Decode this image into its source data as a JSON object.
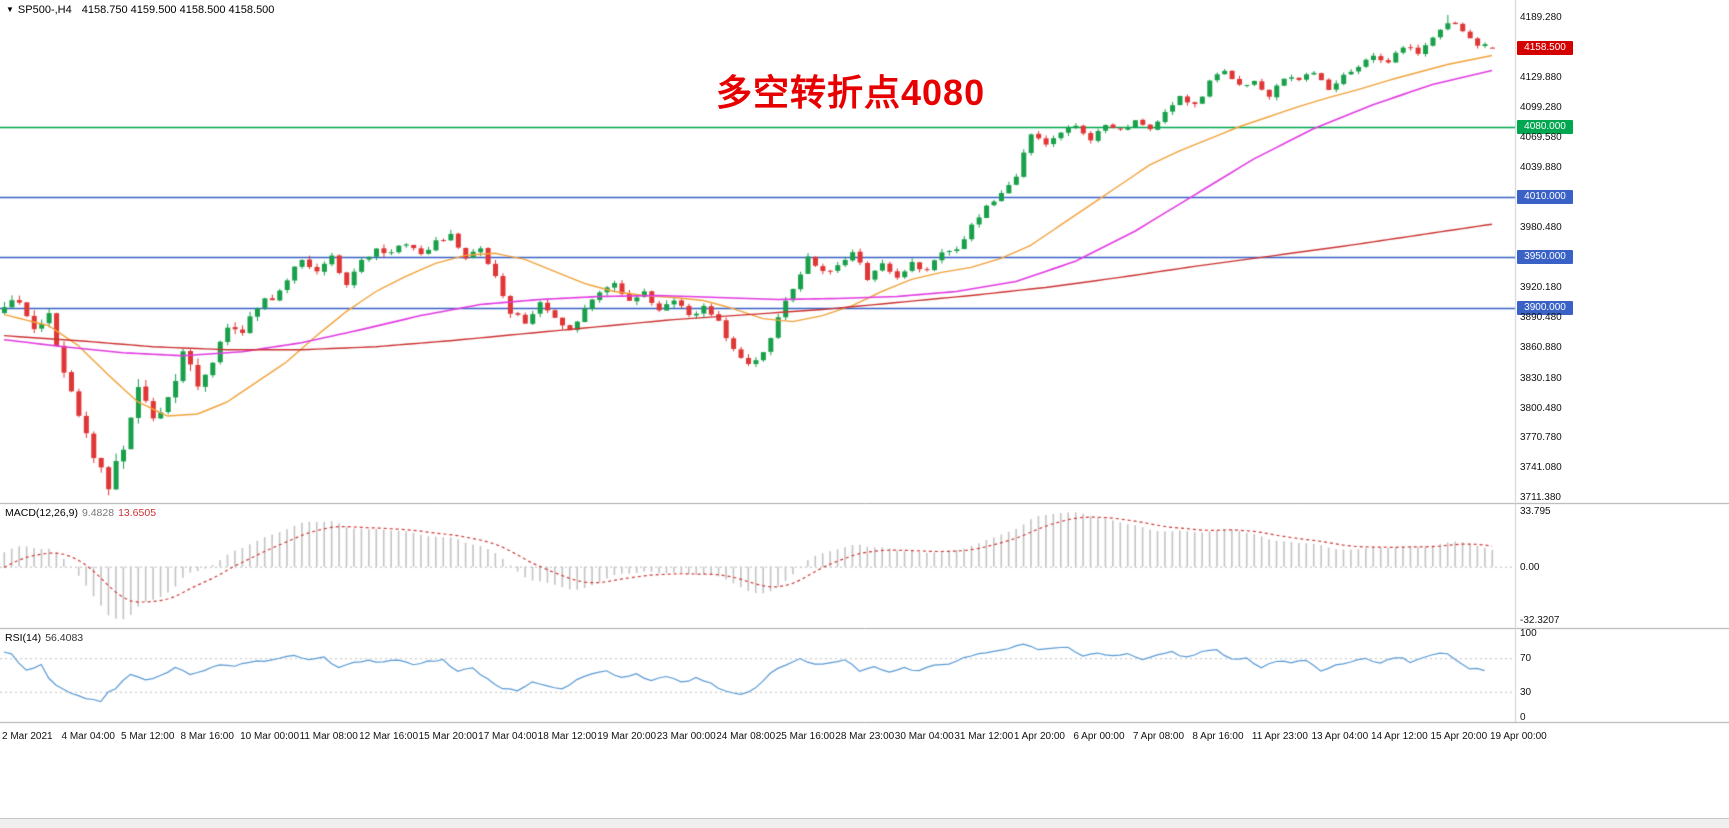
{
  "header": {
    "arrow": "▼",
    "symbol": "SP500-,H4",
    "ohlc": "4158.750 4159.500 4158.500 4158.500"
  },
  "annotation": {
    "text": "多空转折点4080",
    "color": "#e80000"
  },
  "colors": {
    "candle_up": "#19a04b",
    "candle_down": "#e03636",
    "ma_fast": "#f2a33c",
    "ma_medium": "#e23ce2",
    "ma_slow": "#cc3333",
    "level_green": "#00a650",
    "level_blue": "#3a62c6",
    "current_price_tag": "#d40000",
    "macd_bars": "#c4c4c4",
    "macd_signal": "#d23b3b",
    "rsi_line": "#5b9bd5",
    "separator": "#aaaaaa"
  },
  "chart_data": {
    "type": "candlestick+indicators",
    "symbol": "SP500-",
    "timeframe": "H4",
    "last_ohlc": {
      "open": 4158.75,
      "high": 4159.5,
      "low": 4158.5,
      "close": 4158.5
    },
    "y_axis": {
      "ticks": [
        4189.28,
        4129.88,
        4099.28,
        4069.58,
        4039.88,
        3980.48,
        3920.18,
        3890.48,
        3860.88,
        3830.18,
        3800.48,
        3770.78,
        3741.08,
        3711.38
      ],
      "tags": [
        {
          "price": 4158.5,
          "color": "#d40000"
        },
        {
          "price": 4080.0,
          "color": "#00a650"
        },
        {
          "price": 4010.0,
          "color": "#3a62c6"
        },
        {
          "price": 3950.0,
          "color": "#3a62c6"
        },
        {
          "price": 3900.0,
          "color": "#3a62c6"
        }
      ],
      "range": [
        3711.38,
        4189.28
      ]
    },
    "levels": [
      {
        "price": 4080,
        "color": "#00a650",
        "note": "多空转折点"
      },
      {
        "price": 4010,
        "color": "#3a62c6"
      },
      {
        "price": 3950,
        "color": "#3a62c6"
      },
      {
        "price": 3900,
        "color": "#3a62c6"
      }
    ],
    "x_axis": {
      "labels": [
        "2 Mar 2021",
        "4 Mar 04:00",
        "5 Mar 12:00",
        "8 Mar 16:00",
        "10 Mar 00:00",
        "11 Mar 08:00",
        "12 Mar 16:00",
        "15 Mar 20:00",
        "17 Mar 04:00",
        "18 Mar 12:00",
        "19 Mar 20:00",
        "23 Mar 00:00",
        "24 Mar 08:00",
        "25 Mar 16:00",
        "28 Mar 23:00",
        "30 Mar 04:00",
        "31 Mar 12:00",
        "1 Apr 20:00",
        "6 Apr 00:00",
        "7 Apr 08:00",
        "8 Apr 16:00",
        "11 Apr 23:00",
        "13 Apr 04:00",
        "14 Apr 12:00",
        "15 Apr 20:00",
        "19 Apr 00:00"
      ],
      "bars_per_label": 8
    },
    "num_candles": 201,
    "price_path_anchors": [
      [
        0,
        3898
      ],
      [
        2,
        3908
      ],
      [
        4,
        3875
      ],
      [
        6,
        3890
      ],
      [
        8,
        3830
      ],
      [
        10,
        3795
      ],
      [
        12,
        3755
      ],
      [
        14,
        3725
      ],
      [
        16,
        3760
      ],
      [
        18,
        3820
      ],
      [
        20,
        3790
      ],
      [
        22,
        3810
      ],
      [
        24,
        3855
      ],
      [
        26,
        3825
      ],
      [
        28,
        3850
      ],
      [
        30,
        3880
      ],
      [
        32,
        3875
      ],
      [
        34,
        3900
      ],
      [
        36,
        3910
      ],
      [
        38,
        3930
      ],
      [
        40,
        3950
      ],
      [
        42,
        3935
      ],
      [
        44,
        3950
      ],
      [
        46,
        3925
      ],
      [
        48,
        3945
      ],
      [
        50,
        3960
      ],
      [
        52,
        3955
      ],
      [
        54,
        3965
      ],
      [
        56,
        3950
      ],
      [
        58,
        3965
      ],
      [
        60,
        3970
      ],
      [
        62,
        3950
      ],
      [
        64,
        3960
      ],
      [
        66,
        3930
      ],
      [
        68,
        3895
      ],
      [
        70,
        3885
      ],
      [
        72,
        3905
      ],
      [
        74,
        3890
      ],
      [
        76,
        3875
      ],
      [
        78,
        3900
      ],
      [
        80,
        3915
      ],
      [
        82,
        3925
      ],
      [
        84,
        3905
      ],
      [
        86,
        3915
      ],
      [
        88,
        3895
      ],
      [
        90,
        3910
      ],
      [
        92,
        3890
      ],
      [
        94,
        3900
      ],
      [
        96,
        3885
      ],
      [
        98,
        3860
      ],
      [
        100,
        3845
      ],
      [
        102,
        3855
      ],
      [
        104,
        3890
      ],
      [
        106,
        3920
      ],
      [
        108,
        3950
      ],
      [
        110,
        3935
      ],
      [
        112,
        3940
      ],
      [
        114,
        3955
      ],
      [
        116,
        3930
      ],
      [
        118,
        3945
      ],
      [
        120,
        3930
      ],
      [
        122,
        3945
      ],
      [
        124,
        3935
      ],
      [
        126,
        3955
      ],
      [
        128,
        3960
      ],
      [
        130,
        3980
      ],
      [
        132,
        4000
      ],
      [
        134,
        4015
      ],
      [
        136,
        4030
      ],
      [
        138,
        4075
      ],
      [
        140,
        4060
      ],
      [
        142,
        4075
      ],
      [
        144,
        4080
      ],
      [
        146,
        4068
      ],
      [
        148,
        4080
      ],
      [
        150,
        4075
      ],
      [
        152,
        4085
      ],
      [
        154,
        4075
      ],
      [
        156,
        4095
      ],
      [
        158,
        4110
      ],
      [
        160,
        4100
      ],
      [
        162,
        4125
      ],
      [
        164,
        4135
      ],
      [
        166,
        4120
      ],
      [
        168,
        4125
      ],
      [
        170,
        4108
      ],
      [
        172,
        4130
      ],
      [
        174,
        4125
      ],
      [
        176,
        4135
      ],
      [
        178,
        4118
      ],
      [
        180,
        4130
      ],
      [
        182,
        4140
      ],
      [
        184,
        4150
      ],
      [
        186,
        4145
      ],
      [
        188,
        4160
      ],
      [
        190,
        4155
      ],
      [
        192,
        4170
      ],
      [
        194,
        4185
      ],
      [
        196,
        4175
      ],
      [
        198,
        4162
      ],
      [
        200,
        4158.5
      ]
    ],
    "pre_anchors": [
      [
        -60,
        3920
      ],
      [
        -50,
        3885
      ],
      [
        -40,
        3915
      ],
      [
        -30,
        3875
      ],
      [
        -20,
        3830
      ],
      [
        -12,
        3805
      ],
      [
        -6,
        3860
      ],
      [
        -1,
        3895
      ]
    ],
    "volatility_anchors": [
      [
        -60,
        10
      ],
      [
        0,
        14
      ],
      [
        18,
        18
      ],
      [
        40,
        10
      ],
      [
        80,
        9
      ],
      [
        120,
        8
      ],
      [
        200,
        7
      ]
    ],
    "extremes": {
      "low_bar": 14,
      "low_price": 3713,
      "high_bar": 194,
      "high_price": 4191.3
    },
    "moving_averages": [
      {
        "name": "fast",
        "color": "#f2a33c",
        "anchors": [
          [
            0,
            3893
          ],
          [
            6,
            3882
          ],
          [
            10,
            3862
          ],
          [
            14,
            3833
          ],
          [
            18,
            3806
          ],
          [
            22,
            3792
          ],
          [
            26,
            3794
          ],
          [
            30,
            3806
          ],
          [
            34,
            3826
          ],
          [
            38,
            3846
          ],
          [
            42,
            3872
          ],
          [
            46,
            3896
          ],
          [
            50,
            3916
          ],
          [
            54,
            3931
          ],
          [
            58,
            3944
          ],
          [
            62,
            3952
          ],
          [
            66,
            3954
          ],
          [
            70,
            3948
          ],
          [
            74,
            3936
          ],
          [
            78,
            3924
          ],
          [
            82,
            3916
          ],
          [
            86,
            3912
          ],
          [
            90,
            3910
          ],
          [
            94,
            3907
          ],
          [
            98,
            3899
          ],
          [
            102,
            3889
          ],
          [
            106,
            3886
          ],
          [
            110,
            3892
          ],
          [
            114,
            3902
          ],
          [
            118,
            3916
          ],
          [
            122,
            3928
          ],
          [
            126,
            3935
          ],
          [
            130,
            3940
          ],
          [
            134,
            3949
          ],
          [
            138,
            3962
          ],
          [
            142,
            3982
          ],
          [
            146,
            4002
          ],
          [
            150,
            4022
          ],
          [
            154,
            4042
          ],
          [
            158,
            4056
          ],
          [
            162,
            4068
          ],
          [
            166,
            4080
          ],
          [
            170,
            4090
          ],
          [
            174,
            4100
          ],
          [
            178,
            4109
          ],
          [
            182,
            4117
          ],
          [
            186,
            4126
          ],
          [
            190,
            4134
          ],
          [
            194,
            4142
          ],
          [
            200,
            4151
          ]
        ]
      },
      {
        "name": "medium",
        "color": "#e23ce2",
        "anchors": [
          [
            0,
            3868
          ],
          [
            8,
            3861
          ],
          [
            16,
            3855
          ],
          [
            24,
            3852
          ],
          [
            32,
            3856
          ],
          [
            40,
            3865
          ],
          [
            48,
            3878
          ],
          [
            56,
            3892
          ],
          [
            64,
            3903
          ],
          [
            72,
            3908
          ],
          [
            80,
            3911
          ],
          [
            88,
            3912
          ],
          [
            96,
            3910
          ],
          [
            104,
            3908
          ],
          [
            112,
            3909
          ],
          [
            120,
            3911
          ],
          [
            128,
            3916
          ],
          [
            136,
            3926
          ],
          [
            144,
            3946
          ],
          [
            152,
            3976
          ],
          [
            160,
            4012
          ],
          [
            168,
            4048
          ],
          [
            176,
            4078
          ],
          [
            184,
            4102
          ],
          [
            192,
            4122
          ],
          [
            200,
            4136
          ]
        ]
      },
      {
        "name": "slow",
        "color": "#cc3333",
        "anchors": [
          [
            0,
            3872
          ],
          [
            10,
            3867
          ],
          [
            20,
            3861
          ],
          [
            30,
            3858
          ],
          [
            40,
            3858
          ],
          [
            50,
            3861
          ],
          [
            60,
            3867
          ],
          [
            70,
            3874
          ],
          [
            80,
            3881
          ],
          [
            90,
            3888
          ],
          [
            100,
            3893
          ],
          [
            110,
            3898
          ],
          [
            120,
            3905
          ],
          [
            130,
            3912
          ],
          [
            140,
            3920
          ],
          [
            150,
            3930
          ],
          [
            160,
            3941
          ],
          [
            170,
            3951
          ],
          [
            180,
            3961
          ],
          [
            190,
            3972
          ],
          [
            200,
            3983
          ]
        ]
      }
    ],
    "macd": {
      "label": "MACD(12,26,9)",
      "value_main": "9.4828",
      "value_signal": "13.6505",
      "params": [
        12,
        26,
        9
      ],
      "ticks": [
        {
          "label": "33.795",
          "value": 33.795
        },
        {
          "label": "0.00",
          "value": 0
        },
        {
          "label": "-32.3207",
          "value": -32.3207
        }
      ]
    },
    "rsi": {
      "label": "RSI(14)",
      "value": "56.4083",
      "period": 14,
      "levels": [
        70,
        30
      ],
      "ticks": [
        {
          "label": "100",
          "value": 100
        },
        {
          "label": "70",
          "value": 70
        },
        {
          "label": "30",
          "value": 30
        },
        {
          "label": "0",
          "value": 0
        }
      ]
    }
  }
}
